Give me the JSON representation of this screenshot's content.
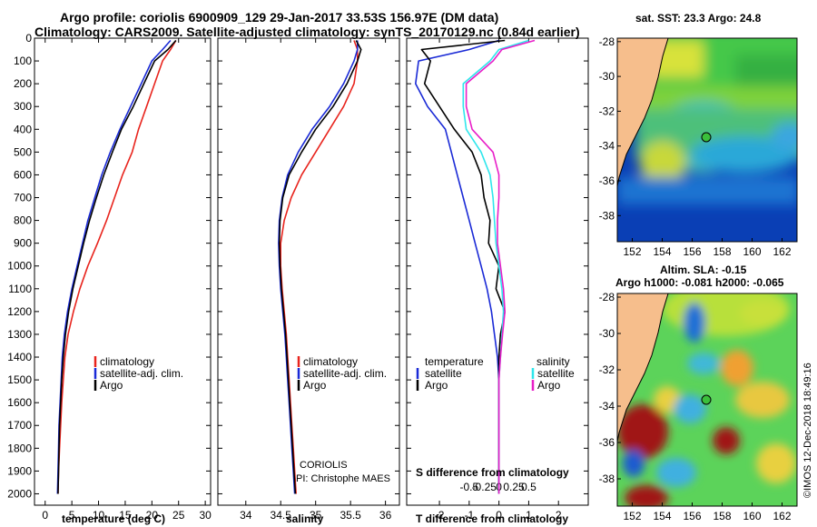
{
  "header": {
    "title_line1": "Argo profile: coriolis 6900909_129 29-Jan-2017 33.53S 156.97E (DM data)",
    "title_line2": "Climatology: CARS2009. Satellite-adjusted climatology: synTS_20170129.nc (0.84d earlier)"
  },
  "colors": {
    "climatology": "#e8241d",
    "satellite": "#1a2ad6",
    "argo": "#000000",
    "sal_satellite": "#2ee6ec",
    "sal_argo": "#e81ec8",
    "land": "#f6be8c"
  },
  "chart_data": [
    {
      "type": "line",
      "xlabel": "temperature (deg C)",
      "ylabel": "",
      "xlim": [
        -2,
        31
      ],
      "ylim": [
        2050,
        0
      ],
      "xticks": [
        "0",
        "5",
        "10",
        "15",
        "20",
        "25",
        "30"
      ],
      "yticks": [
        "0",
        "100",
        "200",
        "300",
        "400",
        "500",
        "600",
        "700",
        "800",
        "900",
        "1000",
        "1100",
        "1200",
        "1300",
        "1400",
        "1500",
        "1600",
        "1700",
        "1800",
        "1900",
        "2000"
      ],
      "legend": [
        "climatology",
        "satellite-adj. clim.",
        "Argo"
      ],
      "series": [
        {
          "name": "climatology",
          "x": [
            24.5,
            23.5,
            22,
            20.5,
            19,
            17.5,
            16.3,
            14.5,
            13,
            11.5,
            9.8,
            8,
            6.5,
            5.3,
            4.3,
            3.7,
            3.4,
            3.1,
            2.9,
            2.7,
            2.5,
            2.4
          ],
          "y": [
            10,
            50,
            100,
            200,
            300,
            400,
            500,
            600,
            700,
            800,
            900,
            1000,
            1100,
            1200,
            1300,
            1400,
            1500,
            1600,
            1700,
            1800,
            1900,
            2000
          ]
        },
        {
          "name": "satellite-adj. clim.",
          "x": [
            23.5,
            22,
            20,
            18,
            16,
            14,
            12.2,
            10.6,
            9.3,
            8,
            7,
            6,
            5,
            4.2,
            3.6,
            3.2,
            3,
            2.8,
            2.6,
            2.5,
            2.4,
            2.3
          ],
          "y": [
            10,
            50,
            100,
            200,
            300,
            400,
            500,
            600,
            700,
            800,
            900,
            1000,
            1100,
            1200,
            1300,
            1400,
            1500,
            1600,
            1700,
            1800,
            1900,
            2000
          ]
        },
        {
          "name": "Argo",
          "x": [
            24.5,
            23,
            20.5,
            18.5,
            16.5,
            14.3,
            12.6,
            11,
            9.6,
            8.3,
            7.2,
            6.2,
            5.2,
            4.4,
            3.8,
            3.4,
            3.1,
            2.9,
            2.7,
            2.6,
            2.5,
            2.4
          ],
          "y": [
            10,
            50,
            100,
            200,
            300,
            400,
            500,
            600,
            700,
            800,
            900,
            1000,
            1100,
            1200,
            1300,
            1400,
            1500,
            1600,
            1700,
            1800,
            1900,
            2000
          ]
        }
      ]
    },
    {
      "type": "line",
      "xlabel": "salinity",
      "ylabel": "",
      "xlim": [
        33.6,
        36.2
      ],
      "ylim": [
        2050,
        0
      ],
      "xticks": [
        "34",
        "34.5",
        "35",
        "35.5",
        "36"
      ],
      "legend": [
        "climatology",
        "satellite-adj. clim.",
        "Argo"
      ],
      "annotations": [
        "CORIOLIS",
        "PI: Christophe MAES"
      ],
      "series": [
        {
          "name": "climatology",
          "x": [
            35.55,
            35.6,
            35.6,
            35.55,
            35.4,
            35.2,
            35.0,
            34.8,
            34.65,
            34.55,
            34.5,
            34.5,
            34.52,
            34.55,
            34.58,
            34.6,
            34.62,
            34.64,
            34.66,
            34.68,
            34.7,
            34.72
          ],
          "y": [
            10,
            50,
            100,
            200,
            300,
            400,
            500,
            600,
            700,
            800,
            900,
            1000,
            1100,
            1200,
            1300,
            1400,
            1500,
            1600,
            1700,
            1800,
            1900,
            2000
          ]
        },
        {
          "name": "satellite-adj. clim.",
          "x": [
            35.6,
            35.6,
            35.55,
            35.4,
            35.2,
            34.95,
            34.75,
            34.6,
            34.52,
            34.48,
            34.47,
            34.48,
            34.5,
            34.53,
            34.56,
            34.58,
            34.6,
            34.62,
            34.64,
            34.66,
            34.68,
            34.7
          ],
          "y": [
            10,
            50,
            100,
            200,
            300,
            400,
            500,
            600,
            700,
            800,
            900,
            1000,
            1100,
            1200,
            1300,
            1400,
            1500,
            1600,
            1700,
            1800,
            1900,
            2000
          ]
        },
        {
          "name": "Argo",
          "x": [
            35.58,
            35.65,
            35.6,
            35.45,
            35.25,
            35.0,
            34.8,
            34.62,
            34.53,
            34.49,
            34.48,
            34.49,
            34.51,
            34.54,
            34.57,
            34.59,
            34.61,
            34.63,
            34.65,
            34.67,
            34.69,
            34.71
          ],
          "y": [
            10,
            50,
            100,
            200,
            300,
            400,
            500,
            600,
            700,
            800,
            900,
            1000,
            1100,
            1200,
            1300,
            1400,
            1500,
            1600,
            1700,
            1800,
            1900,
            2000
          ]
        }
      ]
    },
    {
      "type": "line",
      "xlabel": "T difference from climatology",
      "ylabel": "",
      "title": "S difference from climatology",
      "xlim": [
        -3.1,
        3.0
      ],
      "ylim": [
        2050,
        0
      ],
      "xticks": [
        "-2",
        "-1",
        "0",
        "1",
        "2"
      ],
      "top_ticks": [
        "-0.5",
        "-0.25",
        "0",
        "0.25",
        "0.5"
      ],
      "legend_left_title": "temperature",
      "legend_right_title": "salinity",
      "legend": [
        "satellite",
        "Argo",
        "satellite",
        "Argo"
      ],
      "series": [
        {
          "name": "satellite",
          "x": [
            0,
            -1,
            -2.7,
            -2.8,
            -2.4,
            -1.8,
            -1.6,
            -1.4,
            -1.2,
            -1.0,
            -0.8,
            -0.6,
            -0.4,
            -0.25,
            -0.15,
            -0.05,
            0,
            0,
            0,
            0,
            0,
            0
          ],
          "y": [
            10,
            50,
            100,
            200,
            300,
            400,
            500,
            600,
            700,
            800,
            900,
            1000,
            1100,
            1200,
            1300,
            1400,
            1500,
            1600,
            1700,
            1800,
            1900,
            2000
          ]
        },
        {
          "name": "Argo",
          "x": [
            0.2,
            -2.6,
            -2.3,
            -2.5,
            -2.0,
            -1.5,
            -0.9,
            -0.6,
            -0.5,
            -0.3,
            -0.35,
            0.0,
            -0.1,
            0.2,
            0.05,
            0.0,
            0,
            0,
            0,
            0,
            0,
            0
          ],
          "y": [
            10,
            50,
            100,
            200,
            300,
            400,
            500,
            600,
            700,
            800,
            900,
            1000,
            1100,
            1200,
            1300,
            1400,
            1500,
            1600,
            1700,
            1800,
            1900,
            2000
          ]
        },
        {
          "name": "satellite",
          "x": [
            1.0,
            0,
            -0.3,
            -1.2,
            -1.2,
            -1.1,
            -0.6,
            -0.3,
            -0.2,
            -0.15,
            -0.1,
            0,
            0.1,
            0.15,
            0.1,
            0.05,
            0,
            0,
            0,
            0,
            0,
            0
          ],
          "y": [
            10,
            50,
            100,
            200,
            300,
            400,
            500,
            600,
            700,
            800,
            900,
            1000,
            1100,
            1200,
            1300,
            1400,
            1500,
            1600,
            1700,
            1800,
            1900,
            2000
          ]
        },
        {
          "name": "Argo",
          "x": [
            1.2,
            0.1,
            -0.2,
            -1.1,
            -1.1,
            -0.9,
            -0.2,
            0.0,
            0.0,
            -0.05,
            -0.05,
            0.05,
            0.15,
            0.2,
            0.12,
            0.05,
            0,
            0,
            0,
            0,
            0,
            0
          ],
          "y": [
            10,
            50,
            100,
            200,
            300,
            400,
            500,
            600,
            700,
            800,
            900,
            1000,
            1100,
            1200,
            1300,
            1400,
            1500,
            1600,
            1700,
            1800,
            1900,
            2000
          ]
        }
      ]
    },
    {
      "type": "heatmap",
      "title": "sat. SST: 23.3 Argo: 24.8",
      "xlim": [
        151,
        163
      ],
      "ylim": [
        -39.5,
        -27.8
      ],
      "xticks": [
        "152",
        "154",
        "156",
        "158",
        "160",
        "162"
      ],
      "yticks": [
        "-28",
        "-30",
        "-32",
        "-34",
        "-36",
        "-38"
      ],
      "marker": {
        "lon": 156.97,
        "lat": -33.53
      }
    },
    {
      "type": "heatmap",
      "title": "Altim. SLA: -0.15",
      "subtitle": "Argo h1000: -0.081 h2000: -0.065",
      "xlim": [
        151,
        163
      ],
      "ylim": [
        -39.5,
        -27.8
      ],
      "xticks": [
        "152",
        "154",
        "156",
        "158",
        "160",
        "162"
      ],
      "yticks": [
        "-28",
        "-30",
        "-32",
        "-34",
        "-36",
        "-38"
      ],
      "marker": {
        "lon": 156.97,
        "lat": -33.53
      }
    }
  ],
  "credit": "©IMOS 12-Dec-2018 18:49:16"
}
